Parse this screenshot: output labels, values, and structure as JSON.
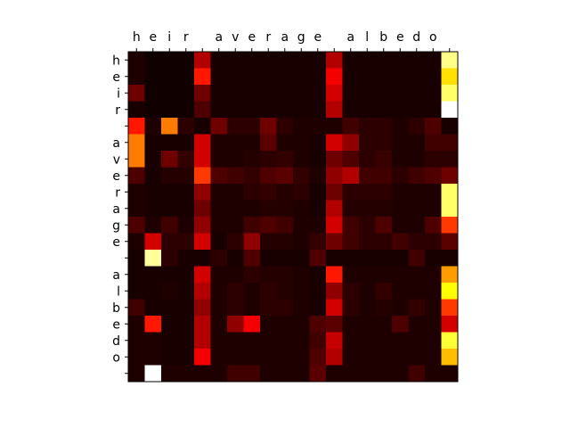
{
  "chart_data": {
    "type": "heatmap",
    "colormap": "hot",
    "x_tick_labels": [
      "h",
      "e",
      "i",
      "r",
      " ",
      "a",
      "v",
      "e",
      "r",
      "a",
      "g",
      "e",
      " ",
      "a",
      "l",
      "b",
      "e",
      "d",
      "o",
      " "
    ],
    "y_tick_labels": [
      "h",
      "e",
      "i",
      "r",
      " ",
      "a",
      "v",
      "e",
      "r",
      "a",
      "g",
      "e",
      " ",
      "a",
      "l",
      "b",
      "e",
      "d",
      "o",
      " "
    ],
    "x_axis_position": "top",
    "value_range": [
      0,
      1
    ],
    "grid": false,
    "values": [
      [
        0.03,
        0.01,
        0.01,
        0.01,
        0.25,
        0.02,
        0.02,
        0.02,
        0.02,
        0.02,
        0.02,
        0.02,
        0.25,
        0.02,
        0.02,
        0.02,
        0.02,
        0.02,
        0.02,
        0.88
      ],
      [
        0.03,
        0.01,
        0.01,
        0.01,
        0.4,
        0.02,
        0.02,
        0.02,
        0.02,
        0.02,
        0.02,
        0.02,
        0.35,
        0.02,
        0.02,
        0.02,
        0.02,
        0.02,
        0.02,
        0.7
      ],
      [
        0.15,
        0.01,
        0.01,
        0.01,
        0.15,
        0.02,
        0.02,
        0.02,
        0.02,
        0.02,
        0.02,
        0.02,
        0.3,
        0.02,
        0.02,
        0.02,
        0.02,
        0.02,
        0.02,
        0.85
      ],
      [
        0.02,
        0.01,
        0.01,
        0.01,
        0.1,
        0.02,
        0.02,
        0.02,
        0.02,
        0.02,
        0.02,
        0.02,
        0.25,
        0.02,
        0.02,
        0.02,
        0.02,
        0.02,
        0.02,
        1.0
      ],
      [
        0.4,
        0.03,
        0.55,
        0.05,
        0.02,
        0.15,
        0.05,
        0.05,
        0.15,
        0.05,
        0.03,
        0.03,
        0.03,
        0.08,
        0.05,
        0.05,
        0.03,
        0.05,
        0.1,
        0.02
      ],
      [
        0.55,
        0.02,
        0.02,
        0.02,
        0.3,
        0.03,
        0.03,
        0.03,
        0.12,
        0.03,
        0.03,
        0.02,
        0.3,
        0.2,
        0.05,
        0.05,
        0.03,
        0.03,
        0.08,
        0.08
      ],
      [
        0.55,
        0.02,
        0.15,
        0.06,
        0.3,
        0.03,
        0.03,
        0.04,
        0.05,
        0.06,
        0.03,
        0.02,
        0.15,
        0.1,
        0.05,
        0.07,
        0.03,
        0.03,
        0.05,
        0.05
      ],
      [
        0.1,
        0.02,
        0.04,
        0.04,
        0.45,
        0.1,
        0.08,
        0.06,
        0.1,
        0.12,
        0.06,
        0.03,
        0.2,
        0.25,
        0.08,
        0.08,
        0.05,
        0.08,
        0.1,
        0.15
      ],
      [
        0.03,
        0.02,
        0.02,
        0.02,
        0.2,
        0.03,
        0.03,
        0.05,
        0.06,
        0.04,
        0.05,
        0.02,
        0.15,
        0.05,
        0.05,
        0.05,
        0.03,
        0.03,
        0.03,
        0.85
      ],
      [
        0.03,
        0.02,
        0.02,
        0.02,
        0.15,
        0.03,
        0.03,
        0.03,
        0.04,
        0.04,
        0.03,
        0.02,
        0.25,
        0.04,
        0.04,
        0.04,
        0.03,
        0.03,
        0.03,
        0.85
      ],
      [
        0.1,
        0.03,
        0.08,
        0.03,
        0.2,
        0.03,
        0.03,
        0.08,
        0.1,
        0.08,
        0.03,
        0.03,
        0.3,
        0.08,
        0.05,
        0.1,
        0.03,
        0.03,
        0.1,
        0.45
      ],
      [
        0.03,
        0.3,
        0.05,
        0.05,
        0.3,
        0.02,
        0.05,
        0.2,
        0.04,
        0.04,
        0.03,
        0.06,
        0.15,
        0.08,
        0.05,
        0.05,
        0.08,
        0.05,
        0.05,
        0.12
      ],
      [
        0.02,
        0.9,
        0.05,
        0.02,
        0.02,
        0.05,
        0.02,
        0.1,
        0.02,
        0.02,
        0.02,
        0.1,
        0.02,
        0.02,
        0.02,
        0.02,
        0.02,
        0.08,
        0.02,
        0.02
      ],
      [
        0.02,
        0.02,
        0.02,
        0.02,
        0.3,
        0.03,
        0.03,
        0.05,
        0.04,
        0.04,
        0.03,
        0.02,
        0.4,
        0.03,
        0.03,
        0.03,
        0.03,
        0.03,
        0.03,
        0.6
      ],
      [
        0.02,
        0.02,
        0.03,
        0.02,
        0.25,
        0.03,
        0.05,
        0.03,
        0.05,
        0.04,
        0.03,
        0.02,
        0.2,
        0.05,
        0.03,
        0.06,
        0.03,
        0.03,
        0.03,
        0.75
      ],
      [
        0.08,
        0.02,
        0.02,
        0.02,
        0.2,
        0.03,
        0.05,
        0.03,
        0.05,
        0.05,
        0.03,
        0.02,
        0.3,
        0.05,
        0.03,
        0.04,
        0.03,
        0.06,
        0.03,
        0.45
      ],
      [
        0.03,
        0.4,
        0.02,
        0.02,
        0.25,
        0.03,
        0.2,
        0.35,
        0.03,
        0.03,
        0.03,
        0.1,
        0.12,
        0.03,
        0.03,
        0.03,
        0.1,
        0.03,
        0.03,
        0.3
      ],
      [
        0.03,
        0.03,
        0.02,
        0.02,
        0.25,
        0.03,
        0.03,
        0.03,
        0.03,
        0.03,
        0.03,
        0.08,
        0.28,
        0.03,
        0.03,
        0.03,
        0.03,
        0.03,
        0.03,
        0.8
      ],
      [
        0.03,
        0.03,
        0.02,
        0.02,
        0.35,
        0.03,
        0.03,
        0.03,
        0.03,
        0.03,
        0.03,
        0.1,
        0.25,
        0.03,
        0.03,
        0.03,
        0.03,
        0.03,
        0.03,
        0.65
      ],
      [
        0.03,
        1.0,
        0.03,
        0.03,
        0.03,
        0.03,
        0.08,
        0.08,
        0.03,
        0.03,
        0.03,
        0.12,
        0.03,
        0.03,
        0.03,
        0.03,
        0.03,
        0.08,
        0.03,
        0.03
      ]
    ]
  }
}
